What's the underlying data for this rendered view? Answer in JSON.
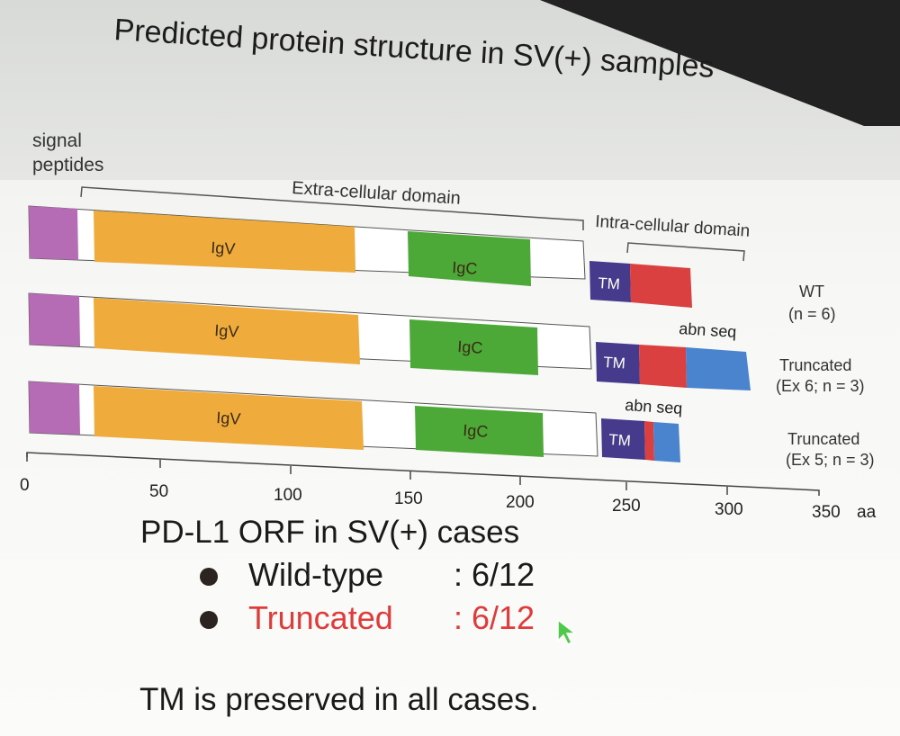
{
  "title": "Predicted protein structure in SV(+) samples",
  "signal_label": "signal peptides",
  "extra_label": "Extra-cellular domain",
  "intra_label": "Intra-cellular domain",
  "domains": {
    "igv": "IgV",
    "igc": "IgC",
    "tm": "TM",
    "abn": "abn seq"
  },
  "rows": [
    {
      "name": "WT",
      "detail": "(n = 6)"
    },
    {
      "name": "Truncated",
      "detail": "(Ex 6; n = 3)"
    },
    {
      "name": "Truncated",
      "detail": "(Ex 5; n = 3)"
    }
  ],
  "axis": {
    "ticks": [
      "0",
      "50",
      "100",
      "150",
      "200",
      "250",
      "300",
      "350"
    ],
    "unit": "aa"
  },
  "colors": {
    "signal": "#b66bb5",
    "igv": "#efab3b",
    "igc": "#4ca938",
    "tm": "#463a8c",
    "intra": "#d9403f",
    "abn": "#4a84cf",
    "highlight_text": "#e03b3b"
  },
  "summary": {
    "heading": "PD-L1 ORF in SV(+) cases",
    "items": [
      {
        "label": "Wild-type",
        "value": ": 6/12"
      },
      {
        "label": "Truncated",
        "value": ": 6/12"
      }
    ],
    "footer": "TM is preserved in all cases."
  }
}
